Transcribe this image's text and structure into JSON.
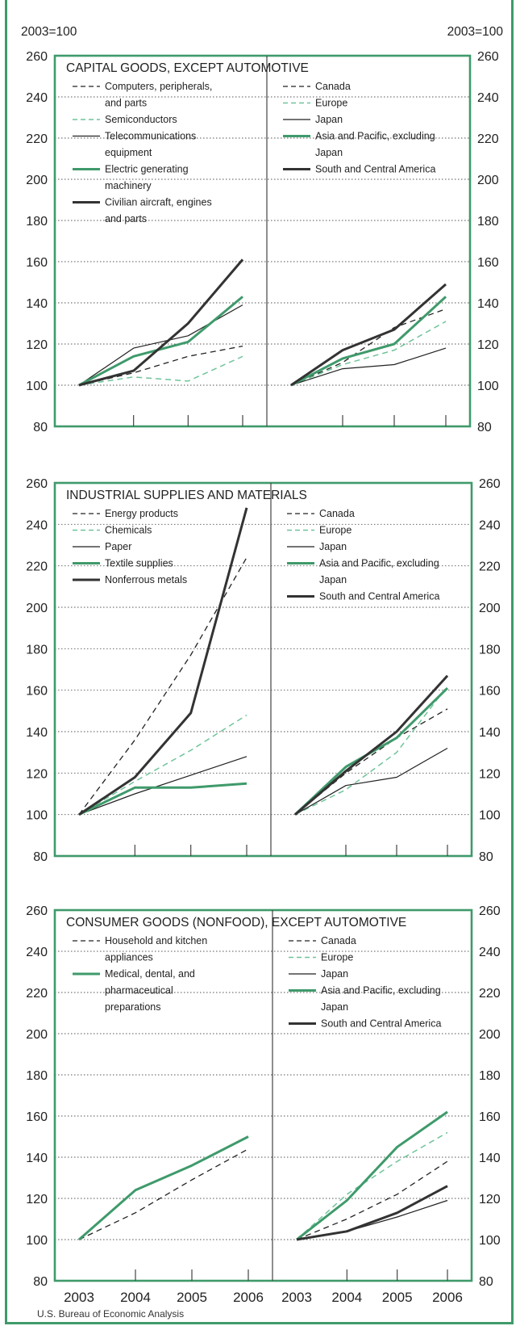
{
  "colors": {
    "frame": "#3f9a6b",
    "green": "#3f9a6b",
    "lightGreen": "#6fc49a",
    "dark": "#333333",
    "black": "#222222"
  },
  "unit_left": "2003=100",
  "unit_right": "2003=100",
  "source": "U.S. Bureau of Economic Analysis",
  "chart_data": [
    {
      "type": "line",
      "title": "CAPITAL GOODS, EXCEPT AUTOMOTIVE",
      "ylim": [
        80,
        260
      ],
      "yticks": [
        80,
        100,
        120,
        140,
        160,
        180,
        200,
        220,
        240,
        260
      ],
      "x": [
        "2003",
        "2004",
        "2005",
        "2006"
      ],
      "grid": "horizontal dotted",
      "left_series": [
        {
          "name": "Computers, peripherals, and parts",
          "legend": [
            "Computers, peripherals,",
            "and parts"
          ],
          "style": "dash-black",
          "values": [
            100,
            106,
            114,
            119
          ]
        },
        {
          "name": "Semiconductors",
          "legend": [
            "Semiconductors"
          ],
          "style": "dash-lightgreen",
          "values": [
            100,
            104,
            102,
            114
          ]
        },
        {
          "name": "Telecommunications equipment",
          "legend": [
            "Telecommunications",
            "equipment"
          ],
          "style": "thin-black",
          "values": [
            100,
            118,
            124,
            139
          ]
        },
        {
          "name": "Electric generating machinery",
          "legend": [
            "Electric generating",
            "machinery"
          ],
          "style": "green",
          "values": [
            100,
            114,
            121,
            143
          ]
        },
        {
          "name": "Civilian aircraft, engines and parts",
          "legend": [
            "Civilian aircraft, engines",
            "and parts"
          ],
          "style": "thick-dark",
          "values": [
            100,
            107,
            130,
            161
          ]
        }
      ],
      "right_series": [
        {
          "name": "Canada",
          "legend": [
            "Canada"
          ],
          "style": "dash-black",
          "values": [
            100,
            111,
            128,
            137
          ]
        },
        {
          "name": "Europe",
          "legend": [
            "Europe"
          ],
          "style": "dash-lightgreen",
          "values": [
            100,
            110,
            117,
            131
          ]
        },
        {
          "name": "Japan",
          "legend": [
            "Japan"
          ],
          "style": "thin-black",
          "values": [
            100,
            108,
            110,
            118
          ]
        },
        {
          "name": "Asia and Pacific, excluding Japan",
          "legend": [
            "Asia and Pacific, excluding",
            "Japan"
          ],
          "style": "green",
          "values": [
            100,
            113,
            120,
            143
          ]
        },
        {
          "name": "South and Central America",
          "legend": [
            "South and Central America"
          ],
          "style": "thick-dark",
          "values": [
            100,
            117,
            127,
            149
          ]
        }
      ]
    },
    {
      "type": "line",
      "title": "INDUSTRIAL SUPPLIES AND MATERIALS",
      "ylim": [
        80,
        260
      ],
      "yticks": [
        80,
        100,
        120,
        140,
        160,
        180,
        200,
        220,
        240,
        260
      ],
      "x": [
        "2003",
        "2004",
        "2005",
        "2006"
      ],
      "grid": "horizontal dotted",
      "left_series": [
        {
          "name": "Energy products",
          "legend": [
            "Energy products"
          ],
          "style": "dash-black",
          "values": [
            100,
            136,
            177,
            224
          ]
        },
        {
          "name": "Chemicals",
          "legend": [
            "Chemicals"
          ],
          "style": "dash-lightgreen",
          "values": [
            100,
            116,
            131,
            148
          ]
        },
        {
          "name": "Paper",
          "legend": [
            "Paper"
          ],
          "style": "thin-black",
          "values": [
            100,
            110,
            119,
            128
          ]
        },
        {
          "name": "Textile supplies",
          "legend": [
            "Textile supplies"
          ],
          "style": "green",
          "values": [
            100,
            113,
            113,
            115
          ]
        },
        {
          "name": "Nonferrous metals",
          "legend": [
            "Nonferrous metals"
          ],
          "style": "thick-dark",
          "values": [
            100,
            118,
            149,
            248
          ]
        }
      ],
      "right_series": [
        {
          "name": "Canada",
          "legend": [
            "Canada"
          ],
          "style": "dash-black",
          "values": [
            100,
            120,
            137,
            151
          ]
        },
        {
          "name": "Europe",
          "legend": [
            "Europe"
          ],
          "style": "dash-lightgreen",
          "values": [
            100,
            112,
            130,
            162
          ]
        },
        {
          "name": "Japan",
          "legend": [
            "Japan"
          ],
          "style": "thin-black",
          "values": [
            100,
            114,
            118,
            132
          ]
        },
        {
          "name": "Asia and Pacific, excluding Japan",
          "legend": [
            "Asia and Pacific, excluding",
            "Japan"
          ],
          "style": "green",
          "values": [
            100,
            123,
            137,
            161
          ]
        },
        {
          "name": "South and Central America",
          "legend": [
            "South and Central America"
          ],
          "style": "thick-dark",
          "values": [
            100,
            121,
            140,
            167
          ]
        }
      ]
    },
    {
      "type": "line",
      "title": "CONSUMER GOODS (NONFOOD), EXCEPT AUTOMOTIVE",
      "ylim": [
        80,
        260
      ],
      "yticks": [
        80,
        100,
        120,
        140,
        160,
        180,
        200,
        220,
        240,
        260
      ],
      "x": [
        "2003",
        "2004",
        "2005",
        "2006"
      ],
      "grid": "horizontal dotted",
      "left_series": [
        {
          "name": "Household and kitchen appliances",
          "legend": [
            "Household and kitchen",
            "appliances"
          ],
          "style": "dash-black",
          "values": [
            100,
            113,
            129,
            144
          ]
        },
        {
          "name": "Medical, dental, and pharmaceutical preparations",
          "legend": [
            "Medical, dental, and",
            "pharmaceutical",
            "preparations"
          ],
          "style": "green",
          "values": [
            100,
            124,
            136,
            150
          ]
        }
      ],
      "right_series": [
        {
          "name": "Canada",
          "legend": [
            "Canada"
          ],
          "style": "dash-black",
          "values": [
            100,
            110,
            122,
            138
          ]
        },
        {
          "name": "Europe",
          "legend": [
            "Europe"
          ],
          "style": "dash-lightgreen",
          "values": [
            100,
            122,
            138,
            152
          ]
        },
        {
          "name": "Japan",
          "legend": [
            "Japan"
          ],
          "style": "thin-black",
          "values": [
            100,
            104,
            111,
            119
          ]
        },
        {
          "name": "Asia and Pacific, excluding Japan",
          "legend": [
            "Asia and Pacific, excluding",
            "Japan"
          ],
          "style": "green",
          "values": [
            100,
            119,
            145,
            162
          ]
        },
        {
          "name": "South and Central America",
          "legend": [
            "South and Central America"
          ],
          "style": "thick-dark",
          "values": [
            100,
            104,
            113,
            126
          ]
        }
      ]
    }
  ]
}
